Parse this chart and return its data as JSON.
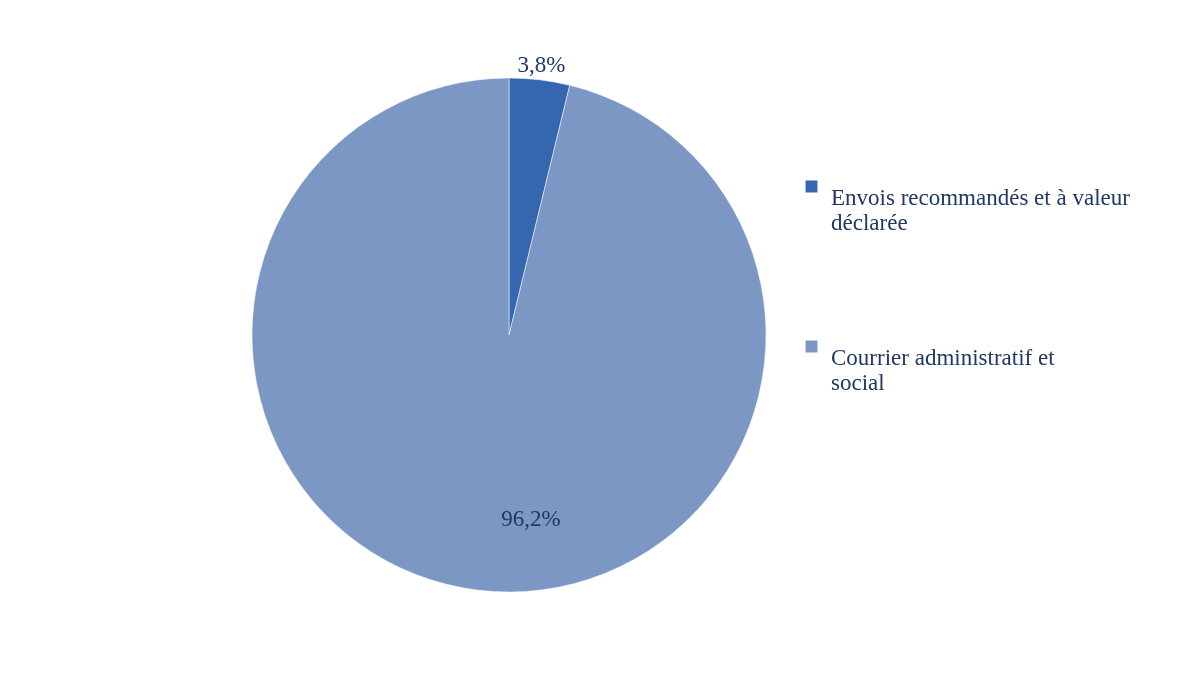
{
  "chart_data": {
    "type": "pie",
    "categories": [
      "Envois recommandés et à valeur déclarée",
      "Courrier administratif et social"
    ],
    "values": [
      3.8,
      96.2
    ],
    "colors": [
      "#3567b0",
      "#7d97c4"
    ],
    "value_labels": [
      "3,8%",
      "96,2%"
    ],
    "legend": "right"
  }
}
